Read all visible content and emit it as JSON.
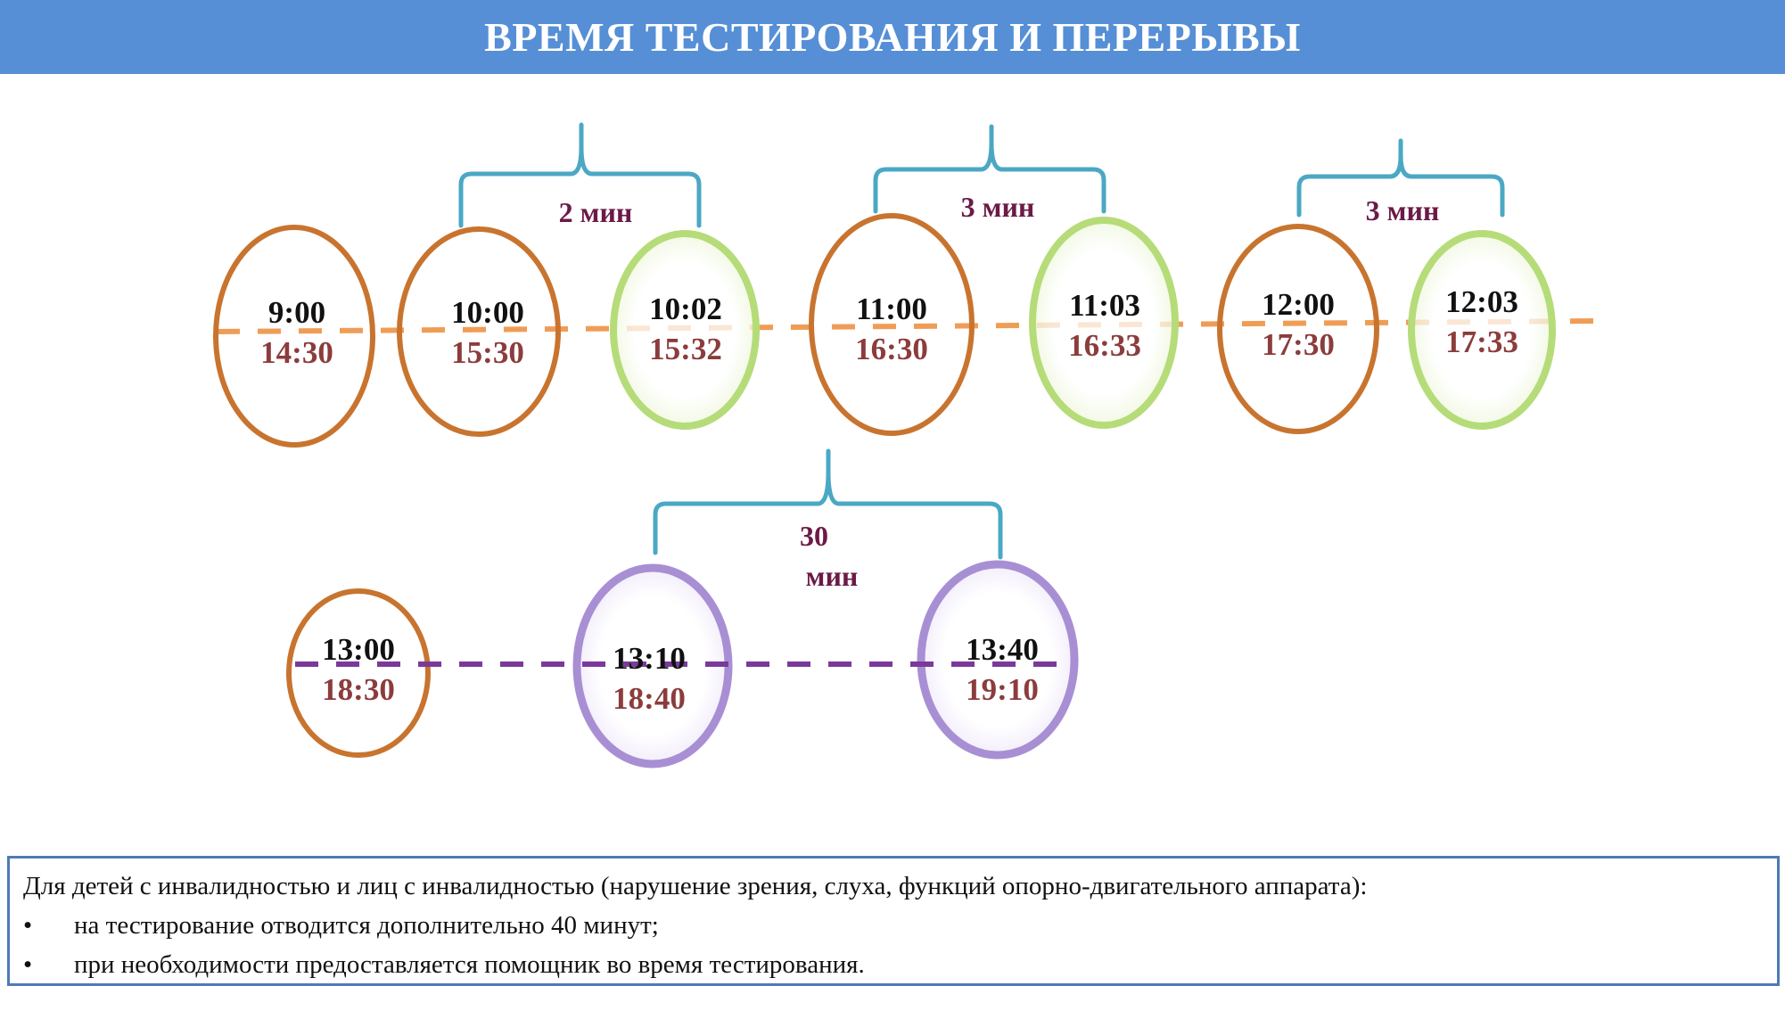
{
  "header": {
    "title": "ВРЕМЯ ТЕСТИРОВАНИЯ И ПЕРЕРЫВЫ"
  },
  "row1": {
    "nodes": [
      {
        "kind": "session",
        "top": "9:00",
        "bottom": "14:30"
      },
      {
        "kind": "session",
        "top": "10:00",
        "bottom": "15:30"
      },
      {
        "kind": "break",
        "top": "10:02",
        "bottom": "15:32"
      },
      {
        "kind": "session",
        "top": "11:00",
        "bottom": "16:30"
      },
      {
        "kind": "break",
        "top": "11:03",
        "bottom": "16:33"
      },
      {
        "kind": "session",
        "top": "12:00",
        "bottom": "17:30"
      },
      {
        "kind": "break",
        "top": "12:03",
        "bottom": "17:33"
      }
    ],
    "braces": [
      {
        "label": "2 мин"
      },
      {
        "label": "3 мин"
      },
      {
        "label": "3 мин"
      }
    ]
  },
  "row2": {
    "nodes": [
      {
        "kind": "session",
        "top": "13:00",
        "bottom": "18:30"
      },
      {
        "kind": "long-break",
        "top": "13:10",
        "bottom": "18:40"
      },
      {
        "kind": "long-break",
        "top": "13:40",
        "bottom": "19:10"
      }
    ],
    "brace": {
      "label_line1": "30",
      "label_line2": "мин"
    }
  },
  "colors": {
    "header_bg": "#568fd6",
    "session_stroke": "#c8742f",
    "break_stroke": "#b5dc78",
    "long_break_stroke": "#a88fd4",
    "brace": "#4ba8c4",
    "brace_label": "#6b1a47",
    "time_top": "#111111",
    "time_bottom": "#8c3c3c",
    "dash_row1": "#ef9d56",
    "dash_row2": "#7a3a9a",
    "note_border": "#4f79b6"
  },
  "note": {
    "intro": "Для детей с инвалидностью и лиц с инвалидностью (нарушение зрения, слуха, функций опорно-двигательного аппарата):",
    "items": [
      {
        "bullet": "•",
        "text": "на тестирование отводится дополнительно 40 минут;"
      },
      {
        "bullet": "•",
        "text": "при необходимости предоставляется помощник во время тестирования."
      }
    ]
  }
}
